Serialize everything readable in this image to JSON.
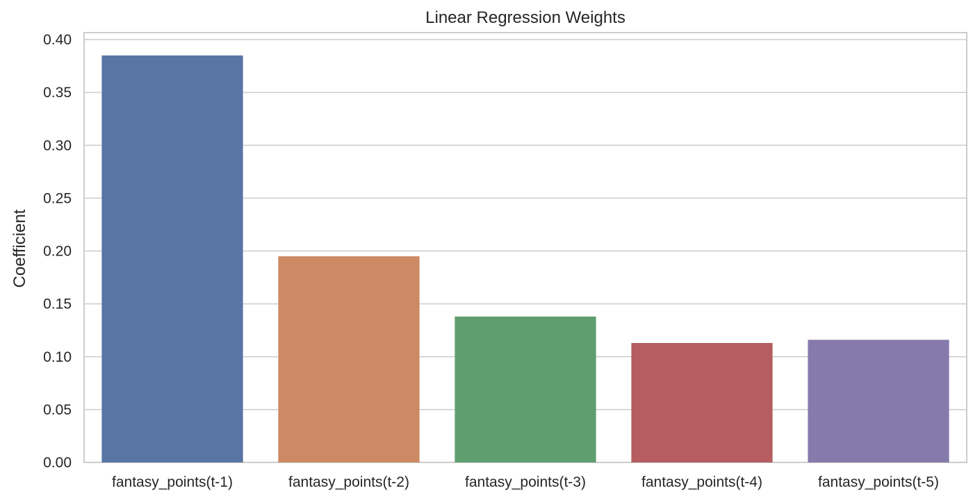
{
  "chart_data": {
    "type": "bar",
    "title": "Linear Regression Weights",
    "xlabel": "",
    "ylabel": "Coefficient",
    "categories": [
      "fantasy_points(t-1)",
      "fantasy_points(t-2)",
      "fantasy_points(t-3)",
      "fantasy_points(t-4)",
      "fantasy_points(t-5)"
    ],
    "values": [
      0.385,
      0.195,
      0.138,
      0.113,
      0.116
    ],
    "colors": [
      "#5875a4",
      "#cc8963",
      "#5f9e6e",
      "#b55d60",
      "#857aab"
    ],
    "ylim": [
      0,
      0.4
    ],
    "yticks": [
      "0.00",
      "0.05",
      "0.10",
      "0.15",
      "0.20",
      "0.25",
      "0.30",
      "0.35",
      "0.40"
    ],
    "grid": true,
    "legend": "none"
  }
}
